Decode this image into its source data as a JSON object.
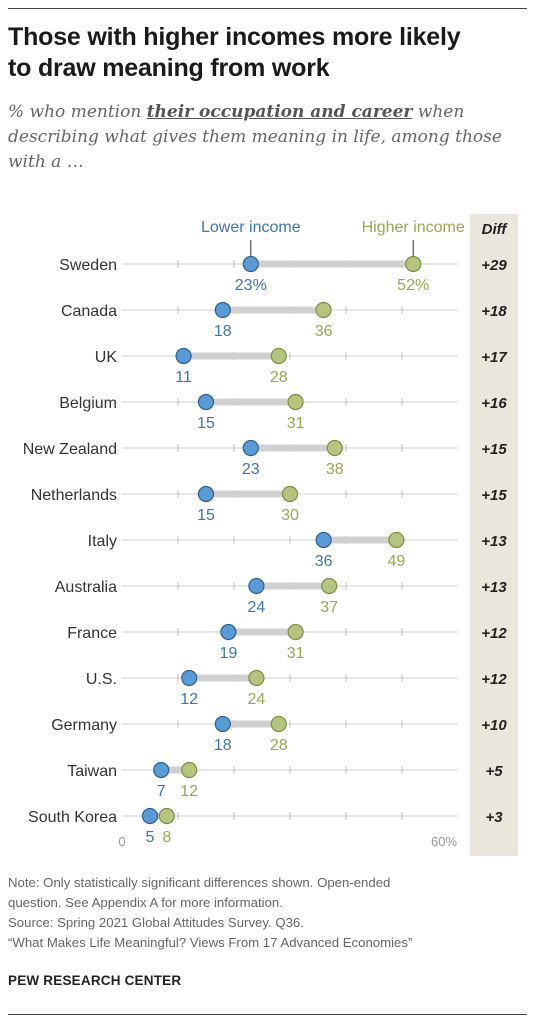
{
  "header": {
    "title_line1": "Those with higher incomes more likely",
    "title_line2": "to draw meaning from work",
    "subtitle_prefix": "% who mention ",
    "subtitle_emphasis": "their occupation and career",
    "subtitle_suffix": " when",
    "subtitle_line2": "describing what gives them meaning in life, among those",
    "subtitle_line3": "with a …"
  },
  "chart_data": {
    "type": "dot-range",
    "series": [
      {
        "name": "Lower income",
        "color": "#5b9bd5"
      },
      {
        "name": "Higher income",
        "color": "#b5c47e"
      }
    ],
    "diff_header": "Diff",
    "xlim": [
      0,
      60
    ],
    "axis_min_label": "0",
    "axis_max_label": "60%",
    "rows": [
      {
        "country": "Sweden",
        "lower": 23,
        "higher": 52,
        "lower_label": "23%",
        "higher_label": "52%",
        "diff": "+29"
      },
      {
        "country": "Canada",
        "lower": 18,
        "higher": 36,
        "lower_label": "18",
        "higher_label": "36",
        "diff": "+18"
      },
      {
        "country": "UK",
        "lower": 11,
        "higher": 28,
        "lower_label": "11",
        "higher_label": "28",
        "diff": "+17"
      },
      {
        "country": "Belgium",
        "lower": 15,
        "higher": 31,
        "lower_label": "15",
        "higher_label": "31",
        "diff": "+16"
      },
      {
        "country": "New Zealand",
        "lower": 23,
        "higher": 38,
        "lower_label": "23",
        "higher_label": "38",
        "diff": "+15"
      },
      {
        "country": "Netherlands",
        "lower": 15,
        "higher": 30,
        "lower_label": "15",
        "higher_label": "30",
        "diff": "+15"
      },
      {
        "country": "Italy",
        "lower": 36,
        "higher": 49,
        "lower_label": "36",
        "higher_label": "49",
        "diff": "+13"
      },
      {
        "country": "Australia",
        "lower": 24,
        "higher": 37,
        "lower_label": "24",
        "higher_label": "37",
        "diff": "+13"
      },
      {
        "country": "France",
        "lower": 19,
        "higher": 31,
        "lower_label": "19",
        "higher_label": "31",
        "diff": "+12"
      },
      {
        "country": "U.S.",
        "lower": 12,
        "higher": 24,
        "lower_label": "12",
        "higher_label": "24",
        "diff": "+12"
      },
      {
        "country": "Germany",
        "lower": 18,
        "higher": 28,
        "lower_label": "18",
        "higher_label": "28",
        "diff": "+10"
      },
      {
        "country": "Taiwan",
        "lower": 7,
        "higher": 12,
        "lower_label": "7",
        "higher_label": "12",
        "diff": "+5"
      },
      {
        "country": "South Korea",
        "lower": 5,
        "higher": 8,
        "lower_label": "5",
        "higher_label": "8",
        "diff": "+3"
      }
    ]
  },
  "footer": {
    "note_line1": "Note: Only statistically significant differences shown. Open-ended",
    "note_line2": "question. See Appendix A for more information.",
    "source": "Source: Spring 2021 Global Attitudes Survey. Q36.",
    "report": "“What Makes Life Meaningful? Views From 17 Advanced Economies”",
    "brand": "PEW RESEARCH CENTER"
  }
}
